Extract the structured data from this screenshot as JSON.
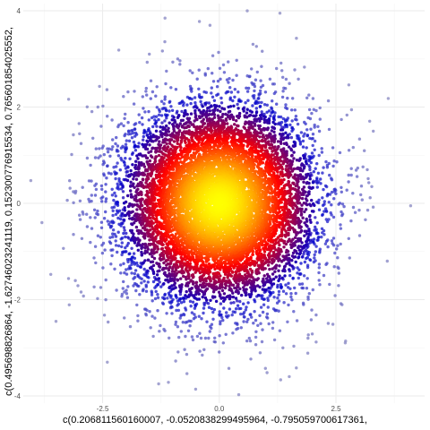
{
  "chart_data": {
    "type": "scatter",
    "title": "",
    "xlabel": "c(0.206811560160007, -0.0520838299495964, -0.795059700617361,",
    "ylabel": "c(0.495698826864, -1.62746023241119, 0.152300776915534, 0.765601854025552,",
    "xlim": [
      -4.2,
      4.4
    ],
    "ylim": [
      -4.15,
      4.15
    ],
    "x_ticks": [
      -2.5,
      0,
      2.5
    ],
    "x_tick_labels": [
      "-2.5",
      "0.0",
      "2.5"
    ],
    "y_ticks": [
      -4,
      -2,
      0,
      2,
      4
    ],
    "y_tick_labels": [
      "-4",
      "-2",
      "0",
      "2",
      "4"
    ],
    "grid": true,
    "legend": "none",
    "distribution": "bivariate standard normal, approx. 10000 points, colored by local density",
    "n_points": 10000,
    "center": [
      0,
      0
    ],
    "sd": [
      1,
      1
    ],
    "density_palette": [
      "#8c8cc0",
      "#0000cc",
      "#ff0000",
      "#ff8c00",
      "#ffff00"
    ],
    "sample_outliers": [
      {
        "x": 0.6,
        "y": 4.0
      },
      {
        "x": 1.3,
        "y": 3.95
      },
      {
        "x": -0.2,
        "y": 3.7
      },
      {
        "x": 4.1,
        "y": -0.05
      },
      {
        "x": -3.8,
        "y": -0.4
      },
      {
        "x": -3.5,
        "y": -2.45
      },
      {
        "x": -2.4,
        "y": -3.3
      },
      {
        "x": 1.9,
        "y": -2.8
      },
      {
        "x": 1.5,
        "y": -3.6
      },
      {
        "x": 2.7,
        "y": -2.9
      },
      {
        "x": -1.3,
        "y": -3.75
      },
      {
        "x": 3.6,
        "y": -1.2
      },
      {
        "x": 3.3,
        "y": 1.5
      },
      {
        "x": -2.6,
        "y": 2.0
      },
      {
        "x": -1.5,
        "y": 3.1
      }
    ]
  }
}
